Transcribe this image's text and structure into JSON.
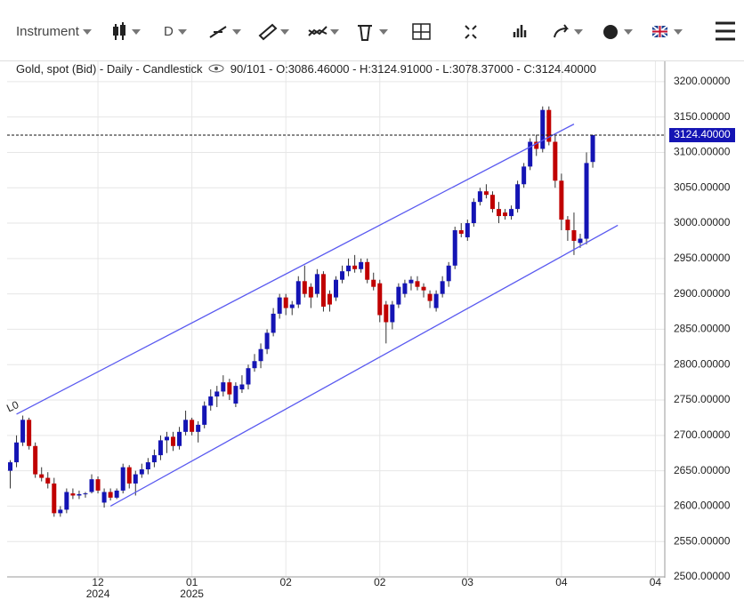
{
  "toolbar": {
    "instrument": "Instrument",
    "timeframe": "D"
  },
  "chart_data": {
    "type": "candlestick",
    "title": "Gold, spot (Bid) - Daily - Candlestick",
    "info": "90/101 - O:3086.46000 - H:3124.91000 - L:3078.37000 - C:3124.40000",
    "categories": [
      null,
      null,
      null,
      null,
      null,
      null,
      null,
      null,
      null,
      null,
      null,
      null,
      null,
      null,
      "12",
      null,
      null,
      null,
      null,
      null,
      null,
      null,
      null,
      null,
      null,
      null,
      null,
      null,
      null,
      "01",
      null,
      null,
      null,
      null,
      null,
      null,
      null,
      null,
      null,
      null,
      null,
      null,
      null,
      null,
      "02",
      null,
      null,
      null,
      null,
      null,
      null,
      null,
      null,
      null,
      null,
      null,
      null,
      null,
      null,
      "02",
      null,
      null,
      null,
      null,
      null,
      null,
      null,
      null,
      null,
      null,
      null,
      null,
      null,
      "03",
      null,
      null,
      null,
      null,
      null,
      null,
      null,
      null,
      null,
      null,
      null,
      null,
      null,
      null,
      "04",
      null,
      null,
      null,
      null,
      null,
      null,
      null,
      null,
      null,
      null,
      null,
      null,
      null,
      null,
      "04",
      null
    ],
    "category_years": [
      null,
      null,
      null,
      null,
      null,
      null,
      null,
      null,
      null,
      null,
      null,
      null,
      null,
      null,
      "2024",
      null,
      null,
      null,
      null,
      null,
      null,
      null,
      null,
      null,
      null,
      null,
      null,
      null,
      null,
      "2025",
      null,
      null,
      null,
      null,
      null,
      null,
      null,
      null,
      null,
      null,
      null,
      null,
      null,
      null,
      null,
      null,
      null,
      null,
      null,
      null,
      null,
      null,
      null,
      null,
      null,
      null,
      null,
      null,
      null,
      null,
      null,
      null,
      null,
      null,
      null,
      null,
      null,
      null,
      null,
      null,
      null,
      null,
      null,
      null,
      null,
      null,
      null,
      null,
      null,
      null,
      null,
      null,
      null,
      null,
      null,
      null,
      null,
      null,
      null,
      null,
      null,
      null,
      null,
      null,
      null,
      null,
      null,
      null,
      null,
      null,
      null,
      null,
      null,
      null,
      null
    ],
    "open": [
      2650,
      2662,
      2690,
      2722,
      2685,
      2645,
      2640,
      2632,
      2590,
      2595,
      2618,
      2615,
      2617,
      2620,
      2638,
      2605,
      2620,
      2612,
      2622,
      2655,
      2632,
      2645,
      2652,
      2662,
      2672,
      2693,
      2698,
      2685,
      2705,
      2722,
      2705,
      2715,
      2742,
      2755,
      2762,
      2775,
      2745,
      2765,
      2772,
      2795,
      2805,
      2822,
      2845,
      2872,
      2895,
      2880,
      2885,
      2918,
      2910,
      2900,
      2928,
      2900,
      2895,
      2920,
      2932,
      2940,
      2935,
      2945,
      2920,
      2915,
      2885,
      2860,
      2885,
      2900,
      2915,
      2918,
      2910,
      2900,
      2880,
      2900,
      2918,
      2940,
      2990,
      2980,
      3000,
      3030,
      3045,
      3040,
      3020,
      3015,
      3010,
      3020,
      3055,
      3080,
      3115,
      3105,
      3160,
      3115,
      3060,
      3005,
      2990,
      2972,
      2978,
      3086.46,
      null,
      null,
      null,
      null,
      null,
      null,
      null,
      null,
      null,
      null,
      null
    ],
    "high": [
      2665,
      2700,
      2728,
      2725,
      2690,
      2655,
      2648,
      2640,
      2600,
      2625,
      2625,
      2622,
      2620,
      2645,
      2642,
      2625,
      2625,
      2625,
      2660,
      2658,
      2650,
      2660,
      2668,
      2680,
      2700,
      2705,
      2705,
      2712,
      2735,
      2725,
      2720,
      2748,
      2765,
      2770,
      2785,
      2780,
      2775,
      2785,
      2800,
      2815,
      2830,
      2850,
      2880,
      2900,
      2900,
      2890,
      2925,
      2940,
      2915,
      2935,
      2932,
      2905,
      2925,
      2940,
      2950,
      2955,
      2950,
      2950,
      2930,
      2920,
      2890,
      2890,
      2915,
      2920,
      2925,
      2925,
      2915,
      2905,
      2905,
      2925,
      2945,
      2995,
      3000,
      3005,
      3035,
      3050,
      3055,
      3045,
      3030,
      3020,
      3025,
      3060,
      3085,
      3120,
      3125,
      3165,
      3165,
      3125,
      3070,
      3010,
      3015,
      2985,
      3100,
      3124.91,
      null,
      null,
      null,
      null,
      null,
      null,
      null,
      null,
      null,
      null,
      null
    ],
    "low": [
      2625,
      2655,
      2685,
      2680,
      2640,
      2635,
      2625,
      2585,
      2585,
      2590,
      2610,
      2610,
      2612,
      2618,
      2618,
      2598,
      2608,
      2610,
      2618,
      2625,
      2615,
      2640,
      2645,
      2655,
      2665,
      2675,
      2678,
      2680,
      2700,
      2700,
      2690,
      2710,
      2735,
      2740,
      2755,
      2750,
      2740,
      2760,
      2765,
      2790,
      2795,
      2815,
      2840,
      2865,
      2870,
      2870,
      2880,
      2895,
      2880,
      2895,
      2875,
      2875,
      2890,
      2915,
      2925,
      2930,
      2930,
      2915,
      2905,
      2860,
      2830,
      2850,
      2880,
      2895,
      2905,
      2905,
      2895,
      2880,
      2875,
      2895,
      2910,
      2935,
      2980,
      2975,
      2995,
      3025,
      3035,
      3015,
      3000,
      3005,
      3005,
      3015,
      3050,
      3075,
      3095,
      3100,
      3110,
      3050,
      2990,
      2975,
      2955,
      2965,
      2970,
      3078.37,
      null,
      null,
      null,
      null,
      null,
      null,
      null,
      null,
      null,
      null,
      null
    ],
    "close": [
      2662,
      2690,
      2722,
      2685,
      2645,
      2640,
      2632,
      2590,
      2595,
      2620,
      2615,
      2617,
      2618,
      2638,
      2622,
      2620,
      2612,
      2622,
      2655,
      2632,
      2645,
      2652,
      2662,
      2672,
      2693,
      2698,
      2685,
      2705,
      2722,
      2705,
      2715,
      2742,
      2755,
      2762,
      2775,
      2758,
      2770,
      2772,
      2795,
      2805,
      2822,
      2845,
      2872,
      2895,
      2880,
      2885,
      2918,
      2900,
      2895,
      2928,
      2882,
      2885,
      2920,
      2932,
      2940,
      2935,
      2945,
      2920,
      2910,
      2870,
      2860,
      2885,
      2910,
      2915,
      2920,
      2910,
      2905,
      2890,
      2900,
      2918,
      2940,
      2990,
      2985,
      3000,
      3030,
      3045,
      3040,
      3020,
      3010,
      3010,
      3020,
      3055,
      3080,
      3115,
      3105,
      3160,
      3115,
      3060,
      3005,
      2990,
      2975,
      2978,
      3085,
      3124.4,
      null,
      null,
      null,
      null,
      null,
      null,
      null,
      null,
      null,
      null,
      null
    ],
    "up_color": "#1414b4",
    "down_color": "#c00000",
    "ylim": [
      2500,
      3235
    ],
    "yticks": [
      {
        "value": 2500,
        "label": "2500.00000"
      },
      {
        "value": 2550,
        "label": "2550.00000"
      },
      {
        "value": 2600,
        "label": "2600.00000"
      },
      {
        "value": 2650,
        "label": "2650.00000"
      },
      {
        "value": 2700,
        "label": "2700.00000"
      },
      {
        "value": 2750,
        "label": "2750.00000"
      },
      {
        "value": 2800,
        "label": "2800.00000"
      },
      {
        "value": 2850,
        "label": "2850.00000"
      },
      {
        "value": 2900,
        "label": "2900.00000"
      },
      {
        "value": 2950,
        "label": "2950.00000"
      },
      {
        "value": 3000,
        "label": "3000.00000"
      },
      {
        "value": 3050,
        "label": "3050.00000"
      },
      {
        "value": 3100,
        "label": "3100.00000"
      },
      {
        "value": 3150,
        "label": "3150.00000"
      },
      {
        "value": 3200,
        "label": "3200.00000"
      }
    ],
    "grid": true,
    "last_price": {
      "value": 3124.4,
      "label": "3124.40000",
      "color": "#1414b4"
    },
    "channel": {
      "label": "L0",
      "color": "#5a5af0",
      "upper": {
        "x": [
          1,
          90
        ],
        "y": [
          2730,
          3140
        ]
      },
      "lower": {
        "x": [
          16,
          97
        ],
        "y": [
          2600,
          2997
        ]
      }
    }
  }
}
